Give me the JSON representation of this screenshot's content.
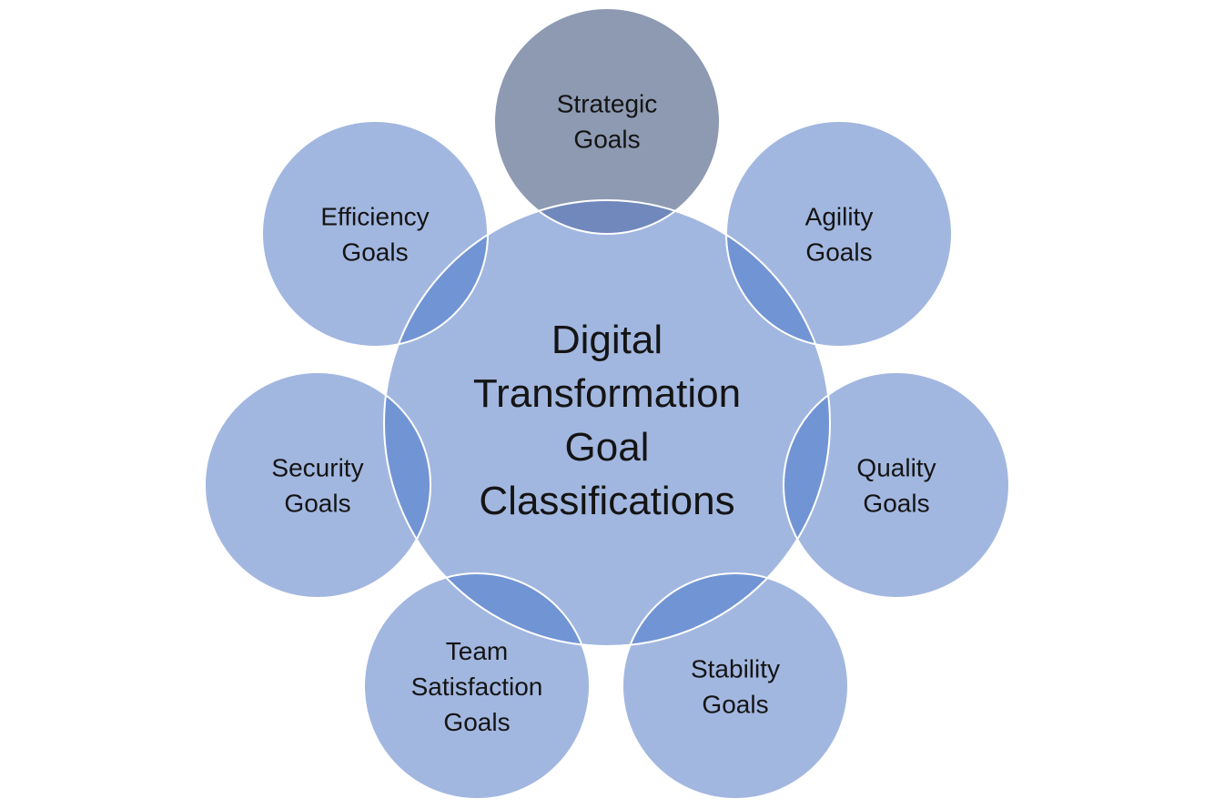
{
  "center": {
    "lines": [
      "Digital",
      "Transformation",
      "Goal",
      "Classifications"
    ]
  },
  "satellites": [
    {
      "key": "strategic",
      "lines": [
        "Strategic",
        "Goals"
      ]
    },
    {
      "key": "agility",
      "lines": [
        "Agility",
        "Goals"
      ]
    },
    {
      "key": "quality",
      "lines": [
        "Quality",
        "Goals"
      ]
    },
    {
      "key": "stability",
      "lines": [
        "Stability",
        "Goals"
      ]
    },
    {
      "key": "team-satisfaction",
      "lines": [
        "Team",
        "Satisfaction",
        "Goals"
      ]
    },
    {
      "key": "security",
      "lines": [
        "Security",
        "Goals"
      ]
    },
    {
      "key": "efficiency",
      "lines": [
        "Efficiency",
        "Goals"
      ]
    }
  ],
  "colors": {
    "circle_fill": "#a2b7e0",
    "highlight_fill": "#8d9ab2",
    "overlap_fill": "#7194d4",
    "overlap_dark_fill": "#7088bb",
    "stroke": "#ffffff",
    "text": "#141414"
  },
  "highlighted": "strategic"
}
